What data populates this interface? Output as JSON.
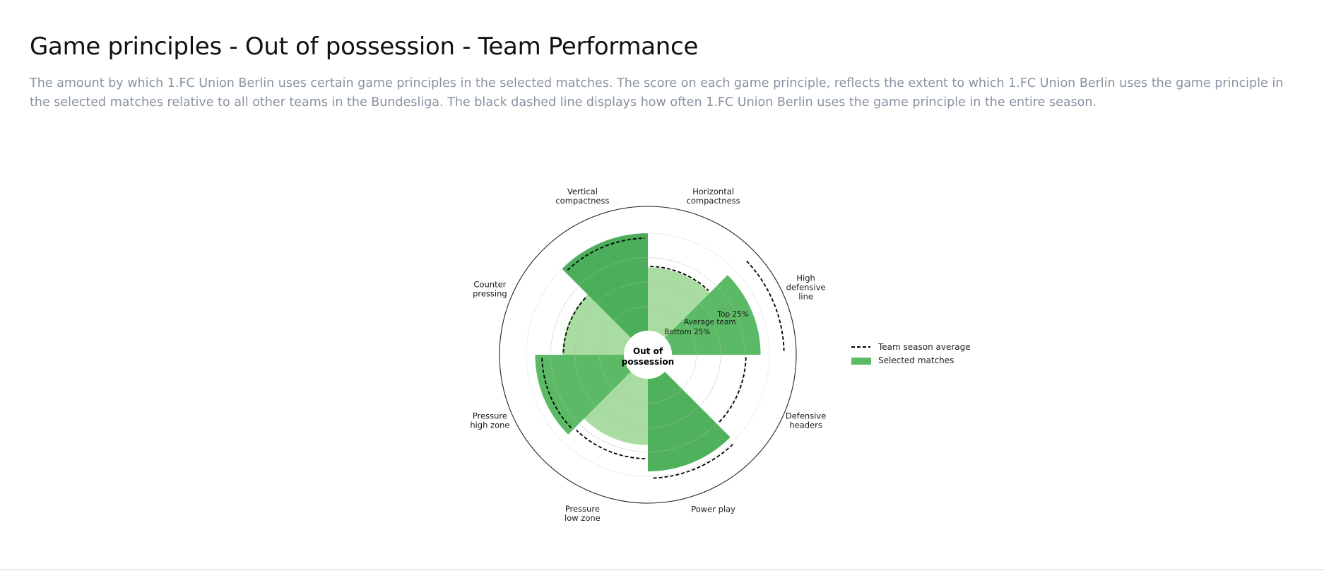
{
  "header": {
    "title": "Game principles - Out of possession - Team Performance",
    "description": "The amount by which 1.FC Union Berlin uses certain game principles in the selected matches. The score on each game principle, reflects the extent to which 1.FC Union Berlin uses the game principle in the selected matches relative to all other teams in the Bundesliga. The black dashed line displays how often 1.FC Union Berlin uses the game principle in the entire season."
  },
  "chart_data": {
    "type": "polar-bar",
    "center_label_line1": "Out of",
    "center_label_line2": "possession",
    "ring_labels": [
      "Top 25%",
      "Average team",
      "Bottom 25%"
    ],
    "ring_values": [
      75,
      50,
      25
    ],
    "rlim": [
      0,
      100
    ],
    "categories": [
      "Horizontal compactness",
      "High defensive line",
      "Defensive headers",
      "Power play",
      "Pressure low zone",
      "Pressure high zone",
      "Counter pressing",
      "Vertical compactness"
    ],
    "category_label_lines": [
      [
        "Horizontal",
        "compactness"
      ],
      [
        "High",
        "defensive",
        "line"
      ],
      [
        "Defensive",
        "headers"
      ],
      [
        "Power play"
      ],
      [
        "Pressure",
        "low zone"
      ],
      [
        "Pressure",
        "high zone"
      ],
      [
        "Counter",
        "pressing"
      ],
      [
        "Vertical",
        "compactness"
      ]
    ],
    "series": [
      {
        "name": "Selected matches",
        "values": [
          65,
          91,
          0,
          95,
          68,
          91,
          63,
          100
        ]
      },
      {
        "name": "Team season average",
        "values": [
          66,
          115,
          76,
          102,
          82,
          84,
          62,
          95
        ]
      }
    ],
    "bar_colors": [
      "#a8dca0",
      "#5cba66",
      "#5cba66",
      "#4fb15c",
      "#a8dca0",
      "#5cba66",
      "#a8dca0",
      "#4aae5a"
    ],
    "legend": {
      "position": "right",
      "entries": [
        "Team season average",
        "Selected matches"
      ],
      "colors": [
        "#000000",
        "#5cba66"
      ]
    }
  }
}
